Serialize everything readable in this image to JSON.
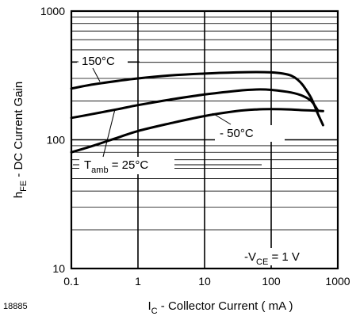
{
  "figure_id": "18885",
  "chart_data": {
    "type": "line",
    "title": "",
    "xlabel": {
      "main": "I",
      "sub": "C",
      "rest": " - Collector Current ( mA )"
    },
    "ylabel": {
      "main": "h",
      "sub": "FE",
      "rest": " - DC Current Gain"
    },
    "xscale": "log",
    "yscale": "log",
    "xlim": [
      0.1,
      1000
    ],
    "ylim": [
      10,
      1000
    ],
    "x_ticks": [
      {
        "value": 0.1,
        "label": "0.1"
      },
      {
        "value": 1,
        "label": "1"
      },
      {
        "value": 10,
        "label": "10"
      },
      {
        "value": 100,
        "label": "100"
      },
      {
        "value": 1000,
        "label": "1000"
      }
    ],
    "y_ticks": [
      {
        "value": 10,
        "label": "10"
      },
      {
        "value": 100,
        "label": "100"
      },
      {
        "value": 1000,
        "label": "1000"
      }
    ],
    "grid": true,
    "series": [
      {
        "name": "150°C",
        "x": [
          0.1,
          0.2,
          0.5,
          1,
          3,
          10,
          30,
          60,
          100,
          150,
          200,
          250,
          300,
          400,
          500,
          600
        ],
        "y": [
          250,
          268,
          287,
          300,
          316,
          327,
          334,
          336,
          334,
          327,
          315,
          293,
          265,
          210,
          160,
          130
        ]
      },
      {
        "name": "Tamb = 25°C",
        "x": [
          0.1,
          0.2,
          0.5,
          1,
          3,
          10,
          30,
          60,
          100,
          200,
          300,
          400,
          500
        ],
        "y": [
          148,
          158,
          173,
          186,
          205,
          225,
          240,
          246,
          244,
          233,
          219,
          200,
          170
        ]
      },
      {
        "name": "-50°C",
        "x": [
          0.1,
          0.2,
          0.5,
          1,
          3,
          10,
          30,
          60,
          100,
          200,
          300,
          500,
          600
        ],
        "y": [
          80,
          89,
          104,
          117,
          134,
          153,
          167,
          172,
          173,
          172,
          170,
          168,
          167
        ]
      }
    ],
    "annotations": [
      {
        "id": "label-150",
        "parts": [
          {
            "t": "150°C"
          }
        ]
      },
      {
        "id": "label-25",
        "parts": [
          {
            "t": "T"
          },
          {
            "t": "amb",
            "sub": true
          },
          {
            "t": " = 25°C"
          }
        ]
      },
      {
        "id": "label-m50",
        "parts": [
          {
            "t": "- 50°C"
          }
        ]
      },
      {
        "id": "label-vce",
        "parts": [
          {
            "t": "-V"
          },
          {
            "t": "CE",
            "sub": true
          },
          {
            "t": " = 1 V"
          }
        ]
      }
    ]
  }
}
